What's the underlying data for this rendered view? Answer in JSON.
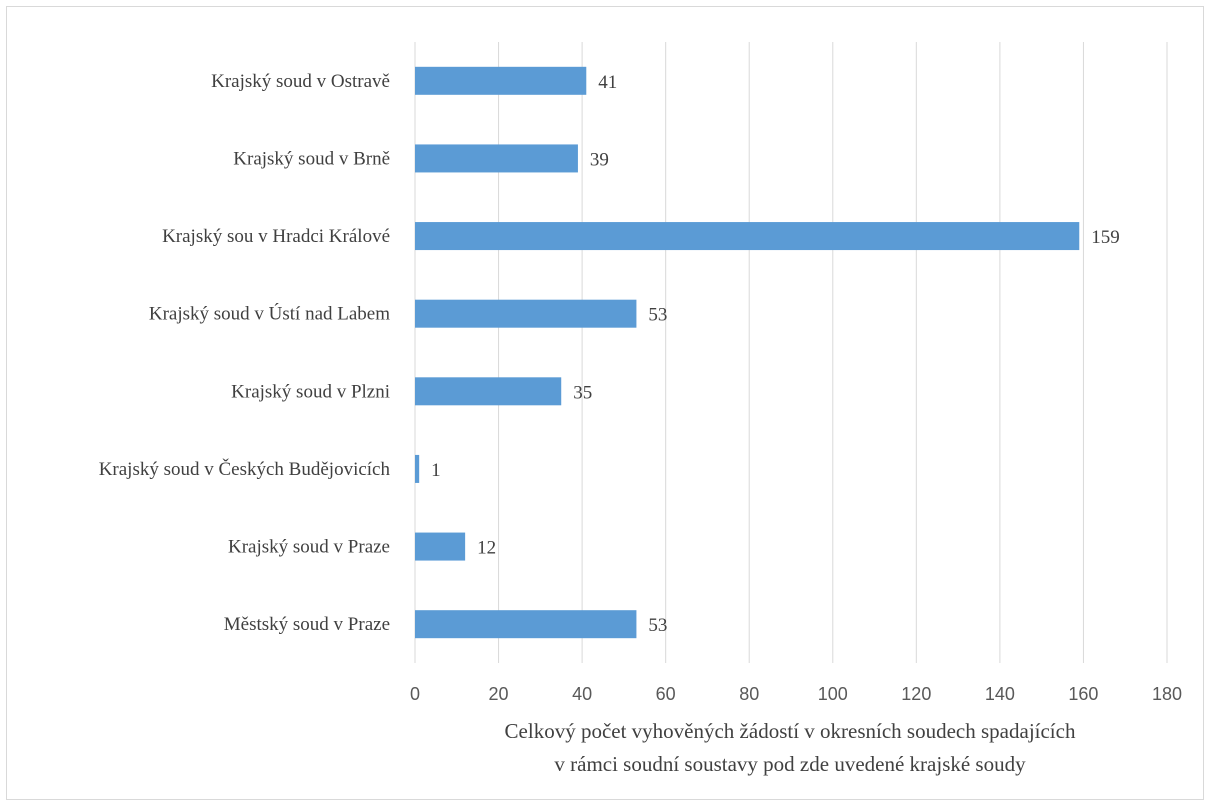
{
  "chart_data": {
    "type": "bar",
    "orientation": "horizontal",
    "categories": [
      "Krajský soud v Ostravě",
      "Krajský soud v Brně",
      "Krajský sou v Hradci Králové",
      "Krajský soud v Ústí  nad Labem",
      "Krajský soud v Plzni",
      "Krajský soud v Českých Budějovicích",
      "Krajský soud v Praze",
      "Městský soud v Praze"
    ],
    "values": [
      41,
      39,
      159,
      53,
      35,
      1,
      12,
      53
    ],
    "data_labels": [
      "41",
      "39",
      "159",
      "53",
      "35",
      "1",
      "12",
      "53"
    ],
    "xlim": [
      0,
      180
    ],
    "xticks": [
      0,
      20,
      40,
      60,
      80,
      100,
      120,
      140,
      160,
      180
    ],
    "xtick_labels": [
      "0",
      "20",
      "40",
      "60",
      "80",
      "100",
      "120",
      "140",
      "160",
      "180"
    ],
    "xlabel_lines": [
      "Celkový počet vyhověných žádostí v okresních soudech spadajících",
      "v rámci soudní soustavy pod zde uvedené krajské soudy"
    ],
    "ylabel": "",
    "title": "",
    "grid": "vertical",
    "legend": "none",
    "bar_color": "#5b9bd5",
    "grid_color": "#d9d9d9"
  }
}
